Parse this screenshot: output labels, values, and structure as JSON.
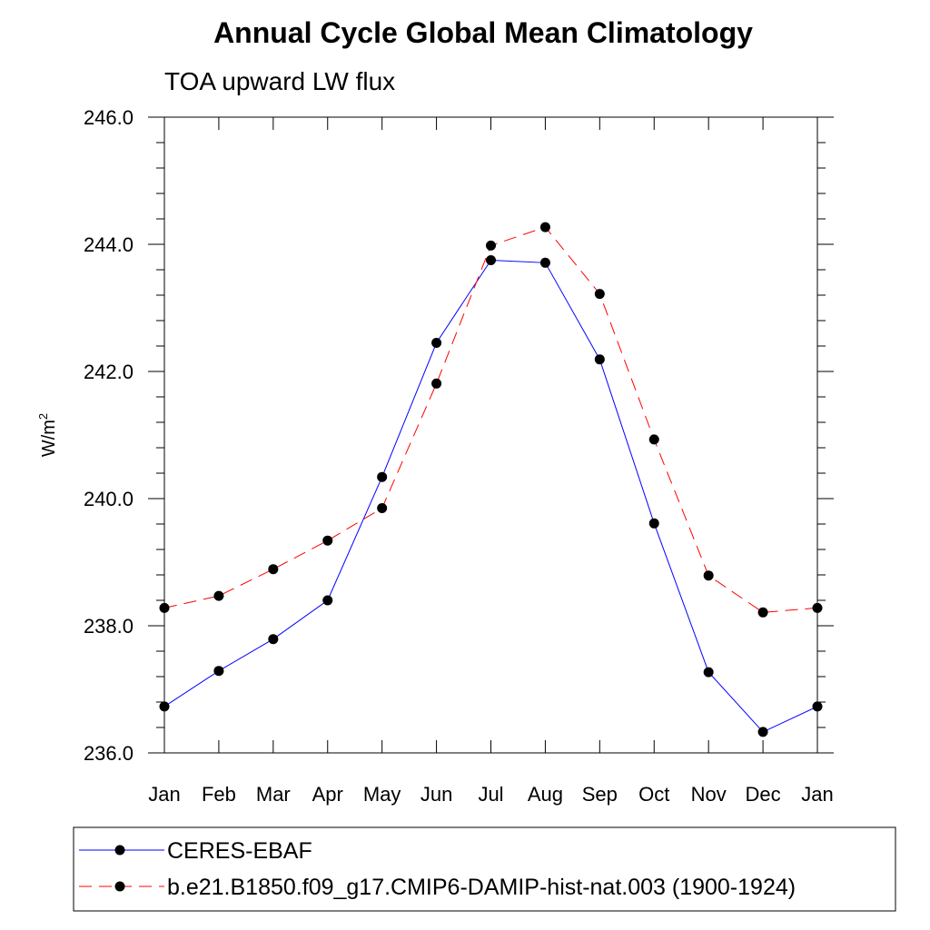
{
  "chart_data": {
    "type": "line",
    "title": "Annual Cycle Global Mean Climatology",
    "subtitle": "TOA upward LW flux",
    "ylabel": "W/m",
    "ylabel_superscript": "2",
    "xlabel": "",
    "categories": [
      "Jan",
      "Feb",
      "Mar",
      "Apr",
      "May",
      "Jun",
      "Jul",
      "Aug",
      "Sep",
      "Oct",
      "Nov",
      "Dec",
      "Jan"
    ],
    "ylim": [
      236.0,
      246.0
    ],
    "yticks": [
      "236.0",
      "238.0",
      "240.0",
      "242.0",
      "244.0",
      "246.0"
    ],
    "grid": false,
    "legend_position": "bottom",
    "series": [
      {
        "name": "CERES-EBAF",
        "color": "#0000ff",
        "line_style": "solid",
        "marker": "filled-circle",
        "values": [
          236.73,
          237.29,
          237.79,
          238.4,
          240.34,
          242.45,
          243.75,
          243.71,
          242.19,
          239.61,
          237.27,
          236.33,
          236.73
        ]
      },
      {
        "name": "b.e21.B1850.f09_g17.CMIP6-DAMIP-hist-nat.003 (1900-1924)",
        "color": "#ff0000",
        "line_style": "dashed",
        "marker": "filled-circle",
        "values": [
          238.28,
          238.47,
          238.89,
          239.34,
          239.85,
          241.81,
          243.98,
          244.27,
          243.22,
          240.93,
          238.79,
          238.21,
          238.28
        ]
      }
    ]
  }
}
